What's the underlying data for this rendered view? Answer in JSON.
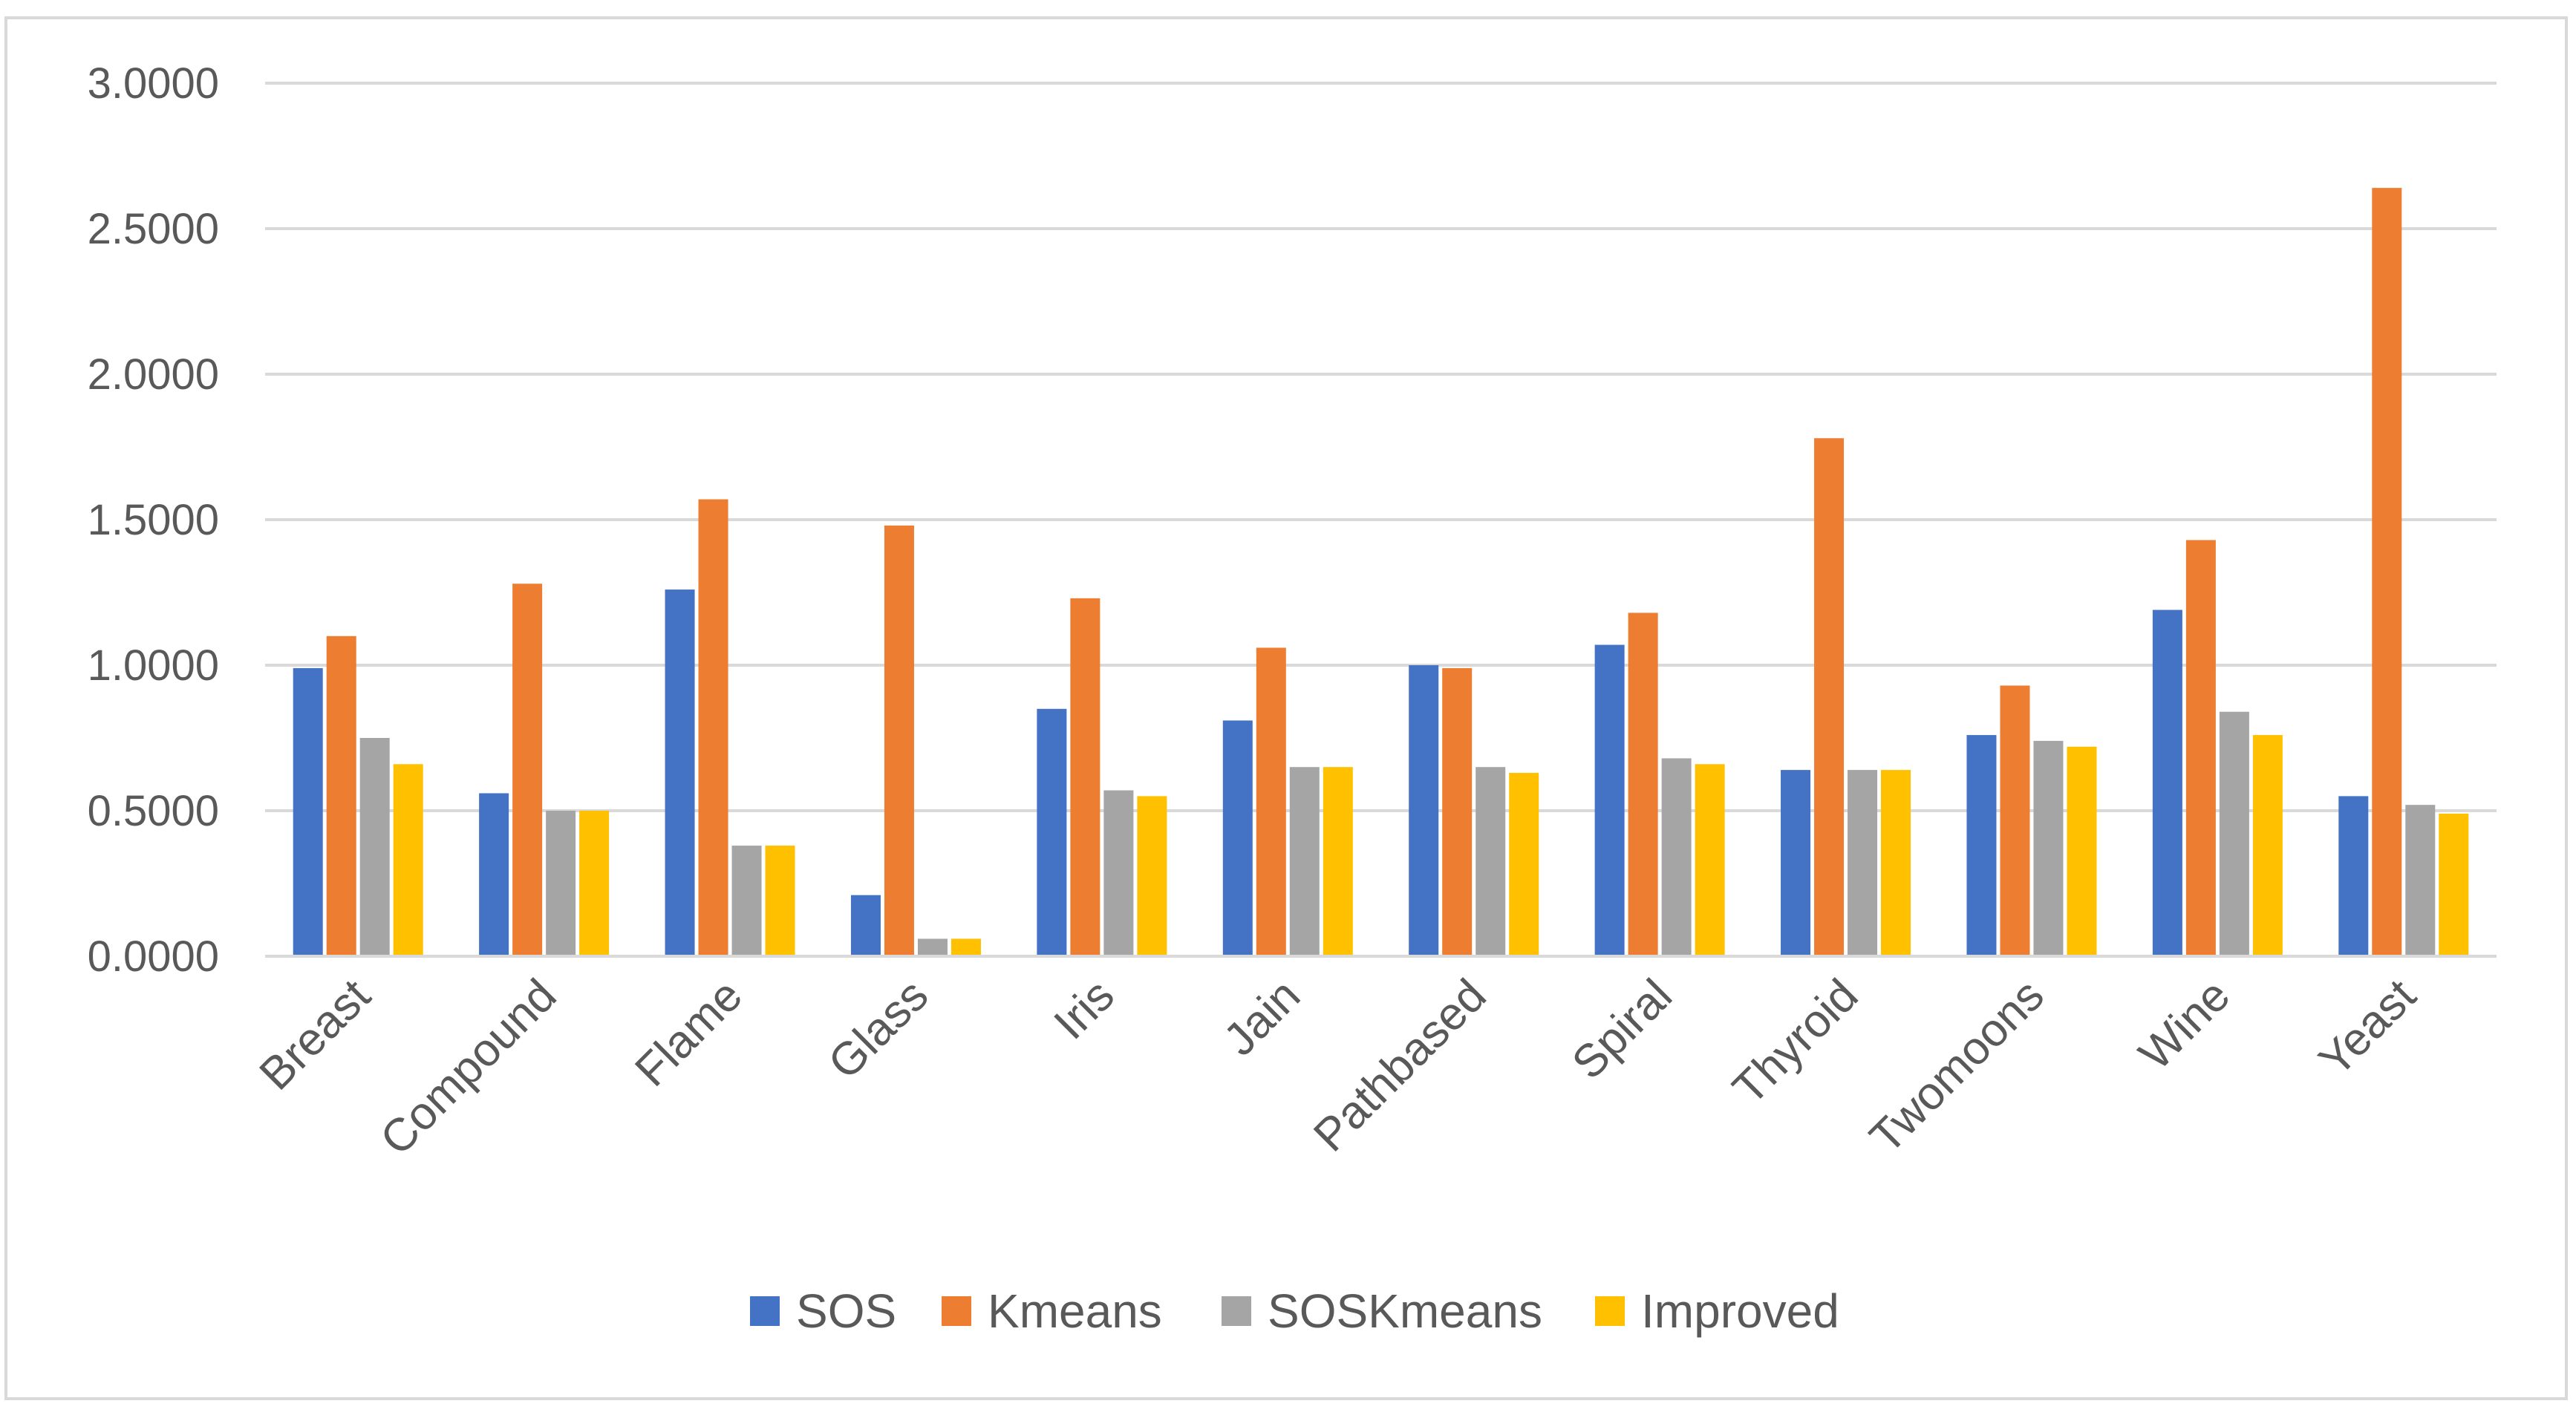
{
  "chart_data": {
    "type": "bar",
    "title": "",
    "xlabel": "",
    "ylabel": "",
    "ylim": [
      0,
      3
    ],
    "yticks": [
      "0.0000",
      "0.5000",
      "1.0000",
      "1.5000",
      "2.0000",
      "2.5000",
      "3.0000"
    ],
    "ytick_values": [
      0,
      0.5,
      1,
      1.5,
      2,
      2.5,
      3
    ],
    "grid": true,
    "legend_position": "bottom",
    "categories": [
      "Breast",
      "Compound",
      "Flame",
      "Glass",
      "Iris",
      "Jain",
      "Pathbased",
      "Spiral",
      "Thyroid",
      "Twomoons",
      "Wine",
      "Yeast"
    ],
    "series": [
      {
        "name": "SOS",
        "color": "#4472c4",
        "values": [
          0.99,
          0.56,
          1.26,
          0.21,
          0.85,
          0.81,
          1.0,
          1.07,
          0.64,
          0.76,
          1.19,
          0.55
        ]
      },
      {
        "name": "Kmeans",
        "color": "#ed7d31",
        "values": [
          1.1,
          1.28,
          1.57,
          1.48,
          1.23,
          1.06,
          0.99,
          1.18,
          1.78,
          0.93,
          1.43,
          2.64
        ]
      },
      {
        "name": "SOSKmeans",
        "color": "#a5a5a5",
        "values": [
          0.75,
          0.5,
          0.38,
          0.06,
          0.57,
          0.65,
          0.65,
          0.68,
          0.64,
          0.74,
          0.84,
          0.52
        ]
      },
      {
        "name": "Improved",
        "color": "#ffc000",
        "values": [
          0.66,
          0.5,
          0.38,
          0.06,
          0.55,
          0.65,
          0.63,
          0.66,
          0.64,
          0.72,
          0.76,
          0.49
        ]
      }
    ]
  }
}
